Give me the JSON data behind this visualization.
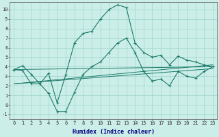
{
  "xlabel": "Humidex (Indice chaleur)",
  "x": [
    0,
    1,
    2,
    3,
    4,
    5,
    6,
    7,
    8,
    9,
    10,
    11,
    12,
    13,
    14,
    15,
    16,
    17,
    18,
    19,
    20,
    21,
    22,
    23
  ],
  "line1": [
    3.7,
    4.1,
    3.2,
    2.2,
    3.3,
    0.2,
    3.2,
    6.5,
    7.5,
    7.7,
    9.0,
    10.0,
    10.5,
    10.2,
    6.5,
    5.5,
    5.0,
    5.2,
    4.2,
    5.1,
    4.7,
    4.5,
    4.2,
    4.0
  ],
  "line2": [
    3.7,
    3.6,
    2.2,
    2.2,
    1.2,
    -0.7,
    -0.7,
    1.3,
    3.2,
    4.0,
    4.5,
    5.5,
    6.5,
    7.0,
    5.5,
    3.5,
    2.5,
    2.7,
    2.0,
    3.5,
    3.0,
    2.8,
    3.5,
    4.0
  ],
  "straight_lines": [
    {
      "x0": 0,
      "y0": 3.7,
      "x1": 23,
      "y1": 4.0
    },
    {
      "x0": 0,
      "y0": 2.2,
      "x1": 23,
      "y1": 3.8
    },
    {
      "x0": 0,
      "y0": 2.2,
      "x1": 23,
      "y1": 4.2
    }
  ],
  "color": "#1a7a6a",
  "bg_color": "#cceee8",
  "grid_color": "#9ad4cc",
  "ylim": [
    -1.5,
    10.8
  ],
  "xlim": [
    -0.5,
    23.5
  ],
  "yticks": [
    -1,
    0,
    1,
    2,
    3,
    4,
    5,
    6,
    7,
    8,
    9,
    10
  ],
  "xticks": [
    0,
    1,
    2,
    3,
    4,
    5,
    6,
    7,
    8,
    9,
    10,
    11,
    12,
    13,
    14,
    15,
    16,
    17,
    18,
    19,
    20,
    21,
    22,
    23
  ],
  "tick_fontsize": 5.0,
  "xlabel_fontsize": 6.0,
  "xlabel_color": "#000080",
  "linewidth": 0.8,
  "markersize": 2.5,
  "marker": "+"
}
